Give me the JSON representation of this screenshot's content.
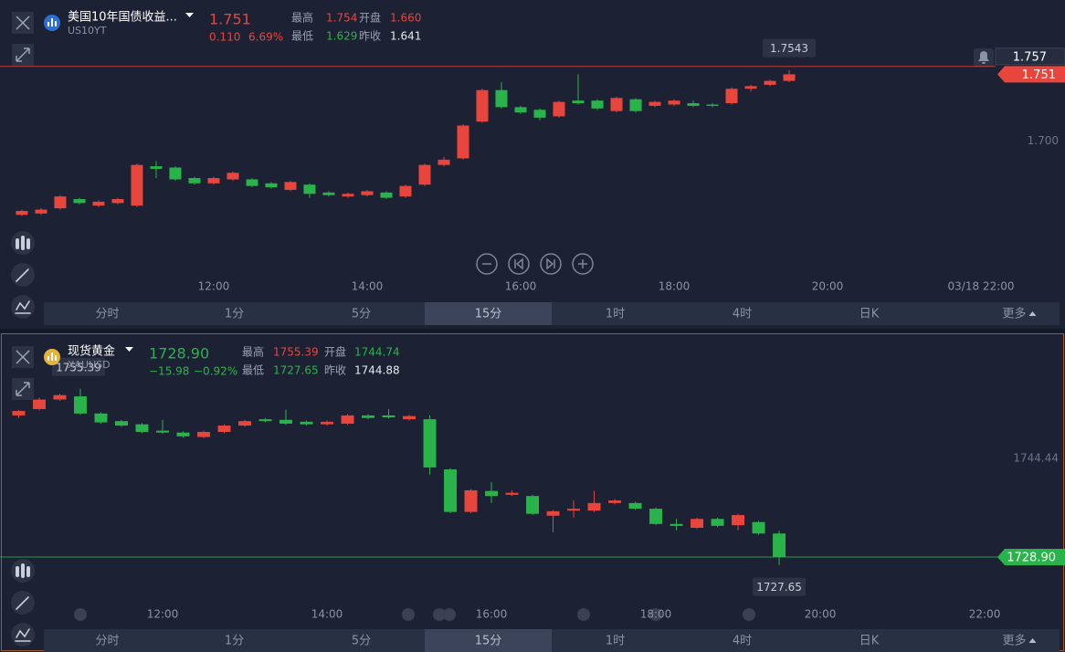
{
  "panels": [
    {
      "name": "美国10年国债收益...",
      "code": "US10YT",
      "price": "1.751",
      "price_color": "#e8453c",
      "change": "0.110",
      "change_pct": "6.69%",
      "change_color": "#e8453c",
      "stats": [
        {
          "label": "最高",
          "value": "1.754",
          "color": "#e8453c"
        },
        {
          "label": "开盘",
          "value": "1.660",
          "color": "#e8453c"
        },
        {
          "label": "最低",
          "value": "1.629",
          "color": "#2ab34a"
        },
        {
          "label": "昨收",
          "value": "1.641",
          "color": "#e6e8ee"
        }
      ],
      "timeframes": [
        "分时",
        "1分",
        "5分",
        "15分",
        "1时",
        "4时",
        "日K",
        "更多"
      ],
      "active_timeframe": "15分"
    },
    {
      "name": "现货黄金",
      "code": "XAUUSD",
      "price": "1728.90",
      "price_color": "#2ab34a",
      "change": "−15.98",
      "change_pct": "−0.92%",
      "change_color": "#2ab34a",
      "stats": [
        {
          "label": "最高",
          "value": "1755.39",
          "color": "#e8453c"
        },
        {
          "label": "开盘",
          "value": "1744.74",
          "color": "#2ab34a"
        },
        {
          "label": "最低",
          "value": "1727.65",
          "color": "#2ab34a"
        },
        {
          "label": "昨收",
          "value": "1744.88",
          "color": "#e6e8ee"
        }
      ],
      "timeframes": [
        "分时",
        "1分",
        "5分",
        "15分",
        "1时",
        "4时",
        "日K",
        "更多"
      ],
      "active_timeframe": "15分"
    }
  ],
  "chart_data": [
    {
      "type": "candlestick",
      "up_color": "#e8453c",
      "down_color": "#2ab34a",
      "open": [
        1.644,
        1.645,
        1.649,
        1.656,
        1.651,
        1.653,
        1.651,
        1.681,
        1.68,
        1.672,
        1.668,
        1.671,
        1.671,
        1.668,
        1.663,
        1.667,
        1.661,
        1.658,
        1.659,
        1.661,
        1.658,
        1.667,
        1.682,
        1.687,
        1.715,
        1.739,
        1.726,
        1.724,
        1.719,
        1.731,
        1.731,
        1.723,
        1.732,
        1.727,
        1.728,
        1.729,
        1.728,
        1.729,
        1.74,
        1.743,
        1.746
      ],
      "high": [
        1.648,
        1.649,
        1.659,
        1.657,
        1.655,
        1.657,
        1.683,
        1.685,
        1.681,
        1.673,
        1.673,
        1.677,
        1.672,
        1.669,
        1.67,
        1.668,
        1.662,
        1.661,
        1.663,
        1.662,
        1.667,
        1.683,
        1.688,
        1.713,
        1.74,
        1.745,
        1.727,
        1.725,
        1.731,
        1.751,
        1.732,
        1.734,
        1.733,
        1.731,
        1.732,
        1.731,
        1.729,
        1.741,
        1.743,
        1.747,
        1.7543
      ],
      "low": [
        1.643,
        1.644,
        1.648,
        1.652,
        1.65,
        1.652,
        1.65,
        1.672,
        1.67,
        1.667,
        1.667,
        1.67,
        1.665,
        1.664,
        1.662,
        1.657,
        1.658,
        1.657,
        1.658,
        1.656,
        1.657,
        1.666,
        1.681,
        1.686,
        1.714,
        1.725,
        1.721,
        1.716,
        1.718,
        1.728,
        1.724,
        1.722,
        1.722,
        1.726,
        1.727,
        1.726,
        1.726,
        1.728,
        1.738,
        1.742,
        1.745
      ],
      "close": [
        1.647,
        1.648,
        1.658,
        1.653,
        1.654,
        1.656,
        1.682,
        1.679,
        1.671,
        1.668,
        1.672,
        1.676,
        1.666,
        1.665,
        1.669,
        1.66,
        1.659,
        1.66,
        1.662,
        1.657,
        1.666,
        1.682,
        1.686,
        1.712,
        1.739,
        1.726,
        1.722,
        1.718,
        1.73,
        1.729,
        1.725,
        1.733,
        1.723,
        1.73,
        1.731,
        1.727,
        1.727,
        1.74,
        1.742,
        1.746,
        1.751
      ],
      "xlim": [
        -1.14,
        50.76
      ],
      "xticks": [
        {
          "value": 10,
          "label": "12:00"
        },
        {
          "value": 18,
          "label": "14:00"
        },
        {
          "value": 26,
          "label": "16:00"
        },
        {
          "value": 34,
          "label": "18:00"
        },
        {
          "value": 42,
          "label": "20:00"
        },
        {
          "value": 50,
          "label": "03/18 22:00"
        }
      ],
      "ylim": [
        1.599,
        1.777
      ],
      "yticks": [
        {
          "value": 1.7,
          "label": "1.700"
        }
      ],
      "last_price": 1.751,
      "crosshair": 1.757,
      "high_marker": 1.7543
    },
    {
      "type": "candlestick",
      "up_color": "#e8453c",
      "down_color": "#2ab34a",
      "open": [
        1751.2,
        1752.2,
        1753.7,
        1754.2,
        1751.5,
        1750.3,
        1749.8,
        1748.8,
        1748.5,
        1747.8,
        1748.6,
        1749.6,
        1750.6,
        1750.5,
        1750.2,
        1749.8,
        1749.9,
        1751.2,
        1751.2,
        1750.6,
        1750.6,
        1742.7,
        1736.0,
        1739.3,
        1738.7,
        1738.5,
        1735.4,
        1736.2,
        1736.2,
        1737.4,
        1737.4,
        1736.5,
        1734.1,
        1733.5,
        1734.9,
        1733.9,
        1734.4,
        1732.6
      ],
      "high": [
        1752.1,
        1754.0,
        1754.6,
        1755.39,
        1751.7,
        1750.5,
        1750.0,
        1750.5,
        1748.7,
        1748.8,
        1749.8,
        1750.5,
        1750.8,
        1752.1,
        1750.4,
        1750.4,
        1751.4,
        1751.4,
        1752.2,
        1751.3,
        1751.2,
        1742.9,
        1739.6,
        1740.7,
        1739.4,
        1738.7,
        1736.3,
        1737.8,
        1739.3,
        1738.0,
        1737.6,
        1736.7,
        1734.9,
        1735.1,
        1735.1,
        1735.7,
        1734.6,
        1733.0
      ],
      "low": [
        1750.8,
        1752.0,
        1753.5,
        1751.3,
        1749.9,
        1749.4,
        1748.4,
        1748.3,
        1747.7,
        1747.6,
        1748.4,
        1749.4,
        1750.1,
        1749.7,
        1749.6,
        1749.6,
        1749.7,
        1750.6,
        1750.7,
        1750.4,
        1741.9,
        1735.8,
        1735.8,
        1737.4,
        1738.5,
        1735.5,
        1732.8,
        1735.1,
        1736.0,
        1737.2,
        1736.3,
        1733.9,
        1733.1,
        1733.3,
        1733.6,
        1733.1,
        1732.4,
        1727.65
      ],
      "close": [
        1751.9,
        1753.7,
        1754.4,
        1751.5,
        1750.1,
        1749.6,
        1748.6,
        1748.5,
        1747.9,
        1748.6,
        1749.6,
        1750.3,
        1750.3,
        1749.9,
        1749.8,
        1750.2,
        1751.2,
        1750.8,
        1750.9,
        1751.1,
        1743.0,
        1736.0,
        1739.4,
        1738.5,
        1739.0,
        1735.7,
        1736.1,
        1736.5,
        1737.4,
        1737.8,
        1736.5,
        1734.1,
        1733.8,
        1734.9,
        1733.8,
        1735.5,
        1732.6,
        1728.9
      ],
      "xlim": [
        -0.91,
        47.53
      ],
      "xticks": [
        {
          "value": 7,
          "label": "12:00"
        },
        {
          "value": 15,
          "label": "14:00"
        },
        {
          "value": 23,
          "label": "16:00"
        },
        {
          "value": 31,
          "label": "18:00"
        },
        {
          "value": 39,
          "label": "20:00"
        },
        {
          "value": 47,
          "label": "22:00"
        }
      ],
      "ylim": [
        1721.7,
        1759.1
      ],
      "yticks": [
        1744.44
      ],
      "last_price": {
        "value": 1728.9,
        "label": "1728.90"
      },
      "high_marker": 1755.39,
      "low_marker": 1727.65
    }
  ]
}
